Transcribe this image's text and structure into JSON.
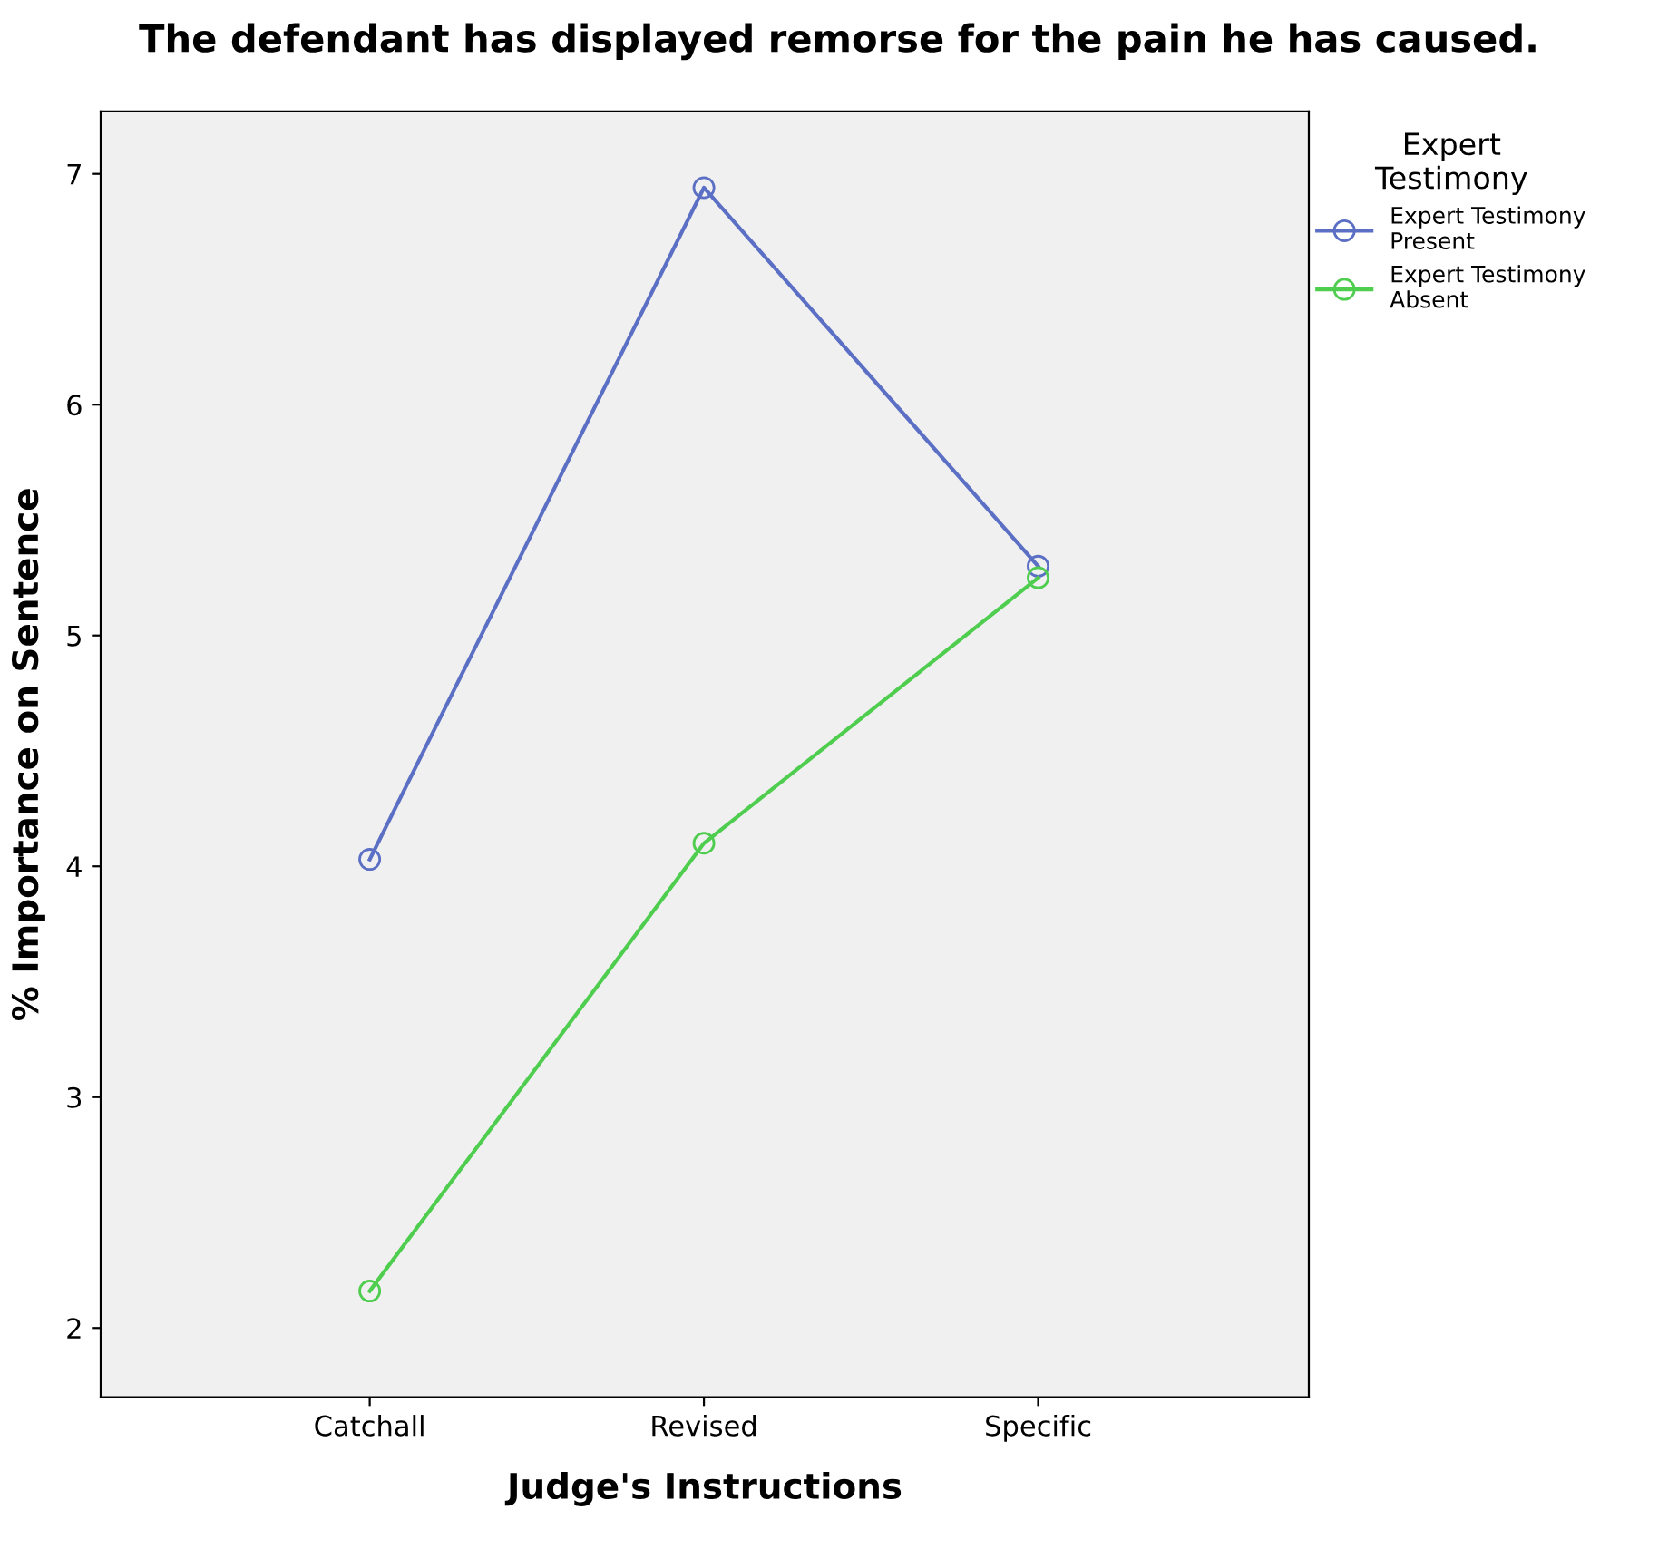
{
  "chart_data": {
    "type": "line",
    "title": "The defendant has displayed remorse for the pain he has caused.",
    "xlabel": "Judge's Instructions",
    "ylabel": "% Importance on Sentence",
    "legend_title": "Expert Testimony",
    "categories": [
      "Catchall",
      "Revised",
      "Specific"
    ],
    "series": [
      {
        "name": "Expert Testimony Present",
        "color": "#5b6fc4",
        "values": [
          4.03,
          6.94,
          5.3
        ]
      },
      {
        "name": "Expert Testimony Absent",
        "color": "#4fcd4f",
        "values": [
          2.16,
          4.1,
          5.25
        ]
      }
    ],
    "ylim": [
      1.7,
      7.27
    ],
    "yticks": [
      2,
      3,
      4,
      5,
      6,
      7
    ],
    "marker": "circle",
    "line_style": "solid",
    "legend": "top right",
    "grid": false
  }
}
